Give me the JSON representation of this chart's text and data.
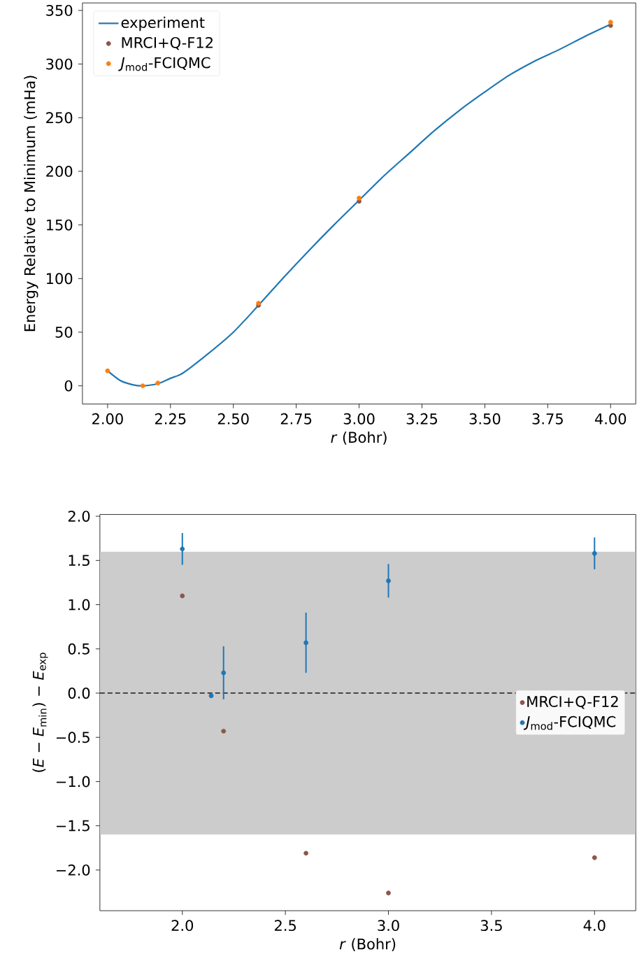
{
  "chart_data": [
    {
      "type": "scatter",
      "xlabel": "*r* (Bohr)",
      "ylabel": "Energy Relative to Minimum (mHa)",
      "xlim": [
        1.9,
        4.1
      ],
      "ylim": [
        -17,
        357
      ],
      "xticks": [
        {
          "value": 2,
          "label": "2.00"
        },
        {
          "value": 2.25,
          "label": "2.25"
        },
        {
          "value": 2.5,
          "label": "2.50"
        },
        {
          "value": 2.75,
          "label": "2.75"
        },
        {
          "value": 3,
          "label": "3.00"
        },
        {
          "value": 3.25,
          "label": "3.25"
        },
        {
          "value": 3.5,
          "label": "3.50"
        },
        {
          "value": 3.75,
          "label": "3.75"
        },
        {
          "value": 4,
          "label": "4.00"
        }
      ],
      "yticks": [
        0,
        50,
        100,
        150,
        200,
        250,
        300,
        350
      ],
      "legend": "top left",
      "grid": false,
      "series": [
        {
          "name": "experiment",
          "type": "line",
          "marker": "none",
          "line_style": "solid",
          "color": "#1f77b4",
          "x": [
            2.0,
            2.05,
            2.1,
            2.14,
            2.2,
            2.25,
            2.3,
            2.4,
            2.5,
            2.6,
            2.7,
            2.8,
            2.9,
            3.0,
            3.1,
            3.2,
            3.3,
            3.4,
            3.5,
            3.6,
            3.7,
            3.8,
            3.9,
            4.0
          ],
          "values": [
            14,
            5,
            1,
            0,
            2,
            7,
            12,
            30,
            50,
            75,
            101,
            126,
            150,
            173,
            196,
            217,
            238,
            257,
            274,
            290,
            303,
            314,
            326,
            337
          ]
        },
        {
          "name": "MRCI+Q-F12",
          "marker": "circle",
          "color": "#8c564b",
          "x": [
            2.6,
            3.0,
            4.0
          ],
          "values": [
            75,
            172,
            336
          ]
        },
        {
          "name": "*J*$_{mod}$-FCIQMC",
          "marker": "circle",
          "color": "#ff7f0e",
          "x": [
            2.0,
            2.14,
            2.2,
            2.6,
            3.0,
            4.0
          ],
          "values": [
            14,
            0,
            2.6,
            77,
            175,
            339
          ]
        }
      ]
    },
    {
      "type": "scatter",
      "xlabel": "*r* (Bohr)",
      "ylabel": "(*E* − *E*$_{min}$) − *E*$_{exp}$",
      "xlim": [
        1.6,
        4.2
      ],
      "ylim": [
        -2.46,
        2.02
      ],
      "xticks": [
        {
          "value": 2,
          "label": "2.0"
        },
        {
          "value": 2.5,
          "label": "2.5"
        },
        {
          "value": 3,
          "label": "3.0"
        },
        {
          "value": 3.5,
          "label": "3.5"
        },
        {
          "value": 4,
          "label": "4.0"
        }
      ],
      "yticks": [
        {
          "value": -2,
          "label": "−2.0"
        },
        {
          "value": -1.5,
          "label": "−1.5"
        },
        {
          "value": -1,
          "label": "−1.0"
        },
        {
          "value": -0.5,
          "label": "−0.5"
        },
        {
          "value": 0,
          "label": "0.0"
        },
        {
          "value": 0.5,
          "label": "0.5"
        },
        {
          "value": 1,
          "label": "1.0"
        },
        {
          "value": 1.5,
          "label": "1.5"
        },
        {
          "value": 2,
          "label": "2.0"
        }
      ],
      "legend": "right",
      "grid": false,
      "bands": [
        {
          "axis": "y",
          "from": -1.6,
          "to": 1.6,
          "color": "#cccccc"
        }
      ],
      "ref_lines": [
        {
          "axis": "y",
          "value": 0,
          "color": "#000000",
          "line_style": "dashed"
        }
      ],
      "series": [
        {
          "name": "MRCI+Q-F12",
          "marker": "circle",
          "color": "#8c564b",
          "x": [
            2.0,
            2.14,
            2.2,
            2.6,
            3.0,
            4.0
          ],
          "values": [
            1.1,
            null,
            -0.43,
            -1.81,
            -2.26,
            -1.86
          ]
        },
        {
          "name": "*J*$_{mod}$-FCIQMC",
          "marker": "circle",
          "color": "#1f77b4",
          "x": [
            2.0,
            2.14,
            2.2,
            2.6,
            3.0,
            4.0
          ],
          "values": [
            1.63,
            -0.03,
            0.23,
            0.57,
            1.27,
            1.58
          ],
          "errors": [
            0.18,
            null,
            0.3,
            0.34,
            0.19,
            0.18
          ]
        }
      ]
    }
  ]
}
